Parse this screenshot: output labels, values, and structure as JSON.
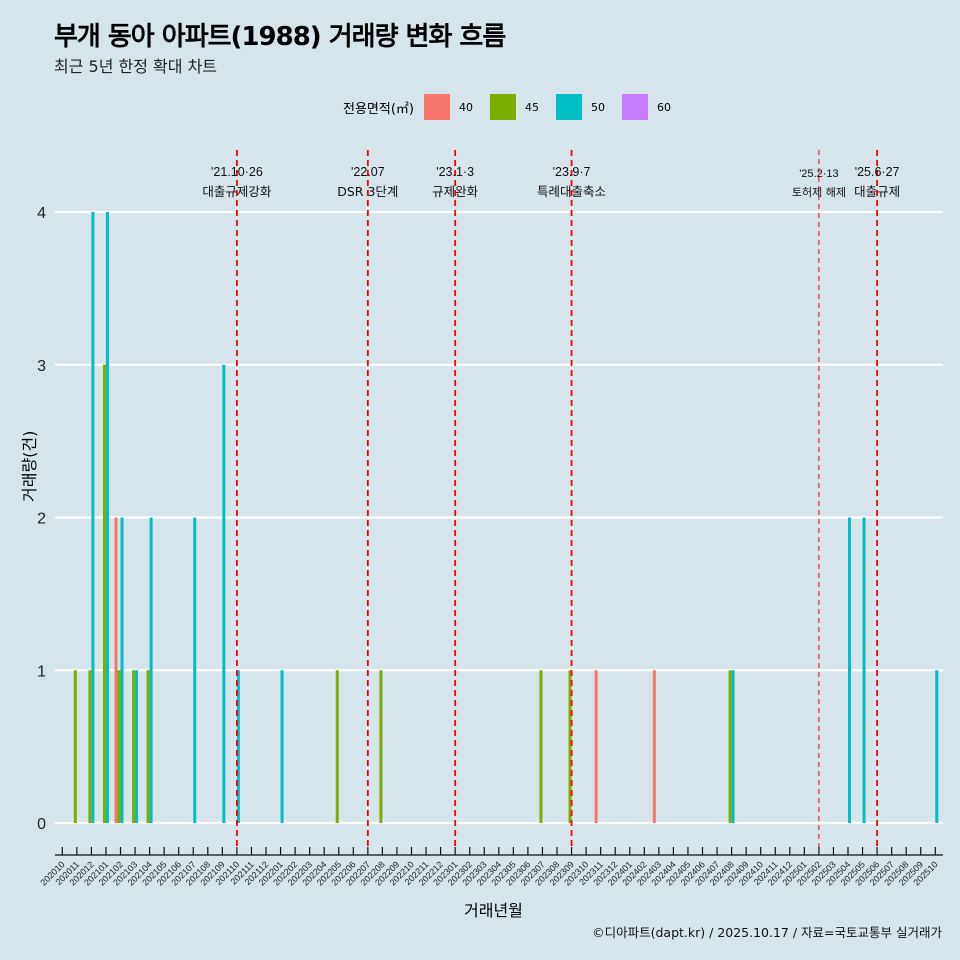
{
  "header": {
    "title": "부개 동아 아파트(1988) 거래량 변화 흐름",
    "subtitle": "최근 5년 한정 확대 차트"
  },
  "legend": {
    "title": "전용면적(㎡)",
    "items": [
      {
        "label": "40",
        "color": "#F8766D"
      },
      {
        "label": "45",
        "color": "#7CAE00"
      },
      {
        "label": "50",
        "color": "#00BFC4"
      },
      {
        "label": "60",
        "color": "#C77CFF"
      }
    ]
  },
  "caption": "©디아파트(dapt.kr) / 2025.10.17 / 자료=국토교통부 실거래가",
  "chart_data": {
    "type": "bar",
    "title": "부개 동아 아파트(1988) 거래량 변화 흐름",
    "subtitle": "최근 5년 한정 확대 차트",
    "xlabel": "거래년월",
    "ylabel": "거래량(건)",
    "ylim": [
      0,
      4
    ],
    "yticks": [
      "0",
      "1",
      "2",
      "3",
      "4"
    ],
    "grid": "horizontal",
    "legend_position": "top",
    "categories": [
      "202010",
      "202011",
      "202012",
      "202101",
      "202102",
      "202103",
      "202104",
      "202105",
      "202106",
      "202107",
      "202108",
      "202109",
      "202110",
      "202111",
      "202112",
      "202201",
      "202202",
      "202203",
      "202204",
      "202205",
      "202206",
      "202207",
      "202208",
      "202209",
      "202210",
      "202211",
      "202212",
      "202301",
      "202302",
      "202303",
      "202304",
      "202305",
      "202306",
      "202307",
      "202308",
      "202309",
      "202310",
      "202311",
      "202312",
      "202401",
      "202402",
      "202403",
      "202404",
      "202405",
      "202406",
      "202407",
      "202408",
      "202409",
      "202410",
      "202411",
      "202412",
      "202501",
      "202502",
      "202503",
      "202504",
      "202505",
      "202506",
      "202507",
      "202508",
      "202509",
      "202510"
    ],
    "series": [
      {
        "name": "40",
        "color": "#F8766D",
        "points": [
          {
            "x": "202102",
            "y": 2
          },
          {
            "x": "202311",
            "y": 1
          },
          {
            "x": "202403",
            "y": 1
          }
        ]
      },
      {
        "name": "45",
        "color": "#7CAE00",
        "points": [
          {
            "x": "202011",
            "y": 1
          },
          {
            "x": "202012",
            "y": 1
          },
          {
            "x": "202101",
            "y": 3
          },
          {
            "x": "202102",
            "y": 1
          },
          {
            "x": "202103",
            "y": 1
          },
          {
            "x": "202104",
            "y": 1
          },
          {
            "x": "202205",
            "y": 1
          },
          {
            "x": "202208",
            "y": 1
          },
          {
            "x": "202307",
            "y": 1
          },
          {
            "x": "202309",
            "y": 1
          },
          {
            "x": "202408",
            "y": 1
          }
        ]
      },
      {
        "name": "50",
        "color": "#00BFC4",
        "points": [
          {
            "x": "202012",
            "y": 4
          },
          {
            "x": "202101",
            "y": 4
          },
          {
            "x": "202102",
            "y": 2
          },
          {
            "x": "202103",
            "y": 1
          },
          {
            "x": "202104",
            "y": 2
          },
          {
            "x": "202107",
            "y": 2
          },
          {
            "x": "202109",
            "y": 3
          },
          {
            "x": "202110",
            "y": 1
          },
          {
            "x": "202201",
            "y": 1
          },
          {
            "x": "202408",
            "y": 1
          },
          {
            "x": "202504",
            "y": 2
          },
          {
            "x": "202505",
            "y": 2
          },
          {
            "x": "202510",
            "y": 1
          }
        ]
      },
      {
        "name": "60",
        "color": "#C77CFF",
        "points": []
      }
    ],
    "annotations": [
      {
        "x": "202110",
        "date": "'21.10·26",
        "label": "대출규제강화",
        "style": "bold"
      },
      {
        "x": "202207",
        "date": "'22.07",
        "label": "DSR 3단계",
        "style": "bold"
      },
      {
        "x": "202301",
        "date": "'23.1·3",
        "label": "규제완화",
        "style": "bold"
      },
      {
        "x": "202309",
        "date": "'23.9·7",
        "label": "특례대출축소",
        "style": "bold"
      },
      {
        "x": "202502",
        "date": "'25.2·13",
        "label": "토허제 해제",
        "style": "thin"
      },
      {
        "x": "202506",
        "date": "'25.6·27",
        "label": "대출규제",
        "style": "bold"
      }
    ],
    "reference_line_color": "#FF0000"
  }
}
